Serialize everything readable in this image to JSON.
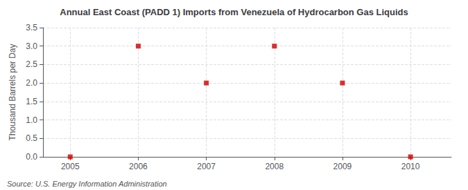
{
  "chart_data": {
    "type": "scatter",
    "title": "Annual East Coast (PADD 1) Imports from Venezuela of Hydrocarbon Gas Liquids",
    "ylabel": "Thousand Barrels per Day",
    "annotations": [
      "Source: U.S. Energy Information Administration"
    ],
    "x": [
      2005,
      2006,
      2007,
      2008,
      2009,
      2010
    ],
    "values": [
      0,
      3,
      2,
      3,
      2,
      0
    ],
    "color": "#cc0000",
    "marker": "square",
    "xlim": [
      2004.6,
      2010.6
    ],
    "xticks": [
      2005,
      2006,
      2007,
      2008,
      2009,
      2010
    ],
    "ylim": [
      0,
      3.5
    ],
    "yticks": [
      {
        "value": 0,
        "label": "0.0"
      },
      0.5,
      {
        "value": 1,
        "label": "1.0"
      },
      1.5,
      {
        "value": 2,
        "label": "2.0"
      },
      2.5,
      {
        "value": 3,
        "label": "3.0"
      },
      3.5
    ],
    "grid": true
  }
}
